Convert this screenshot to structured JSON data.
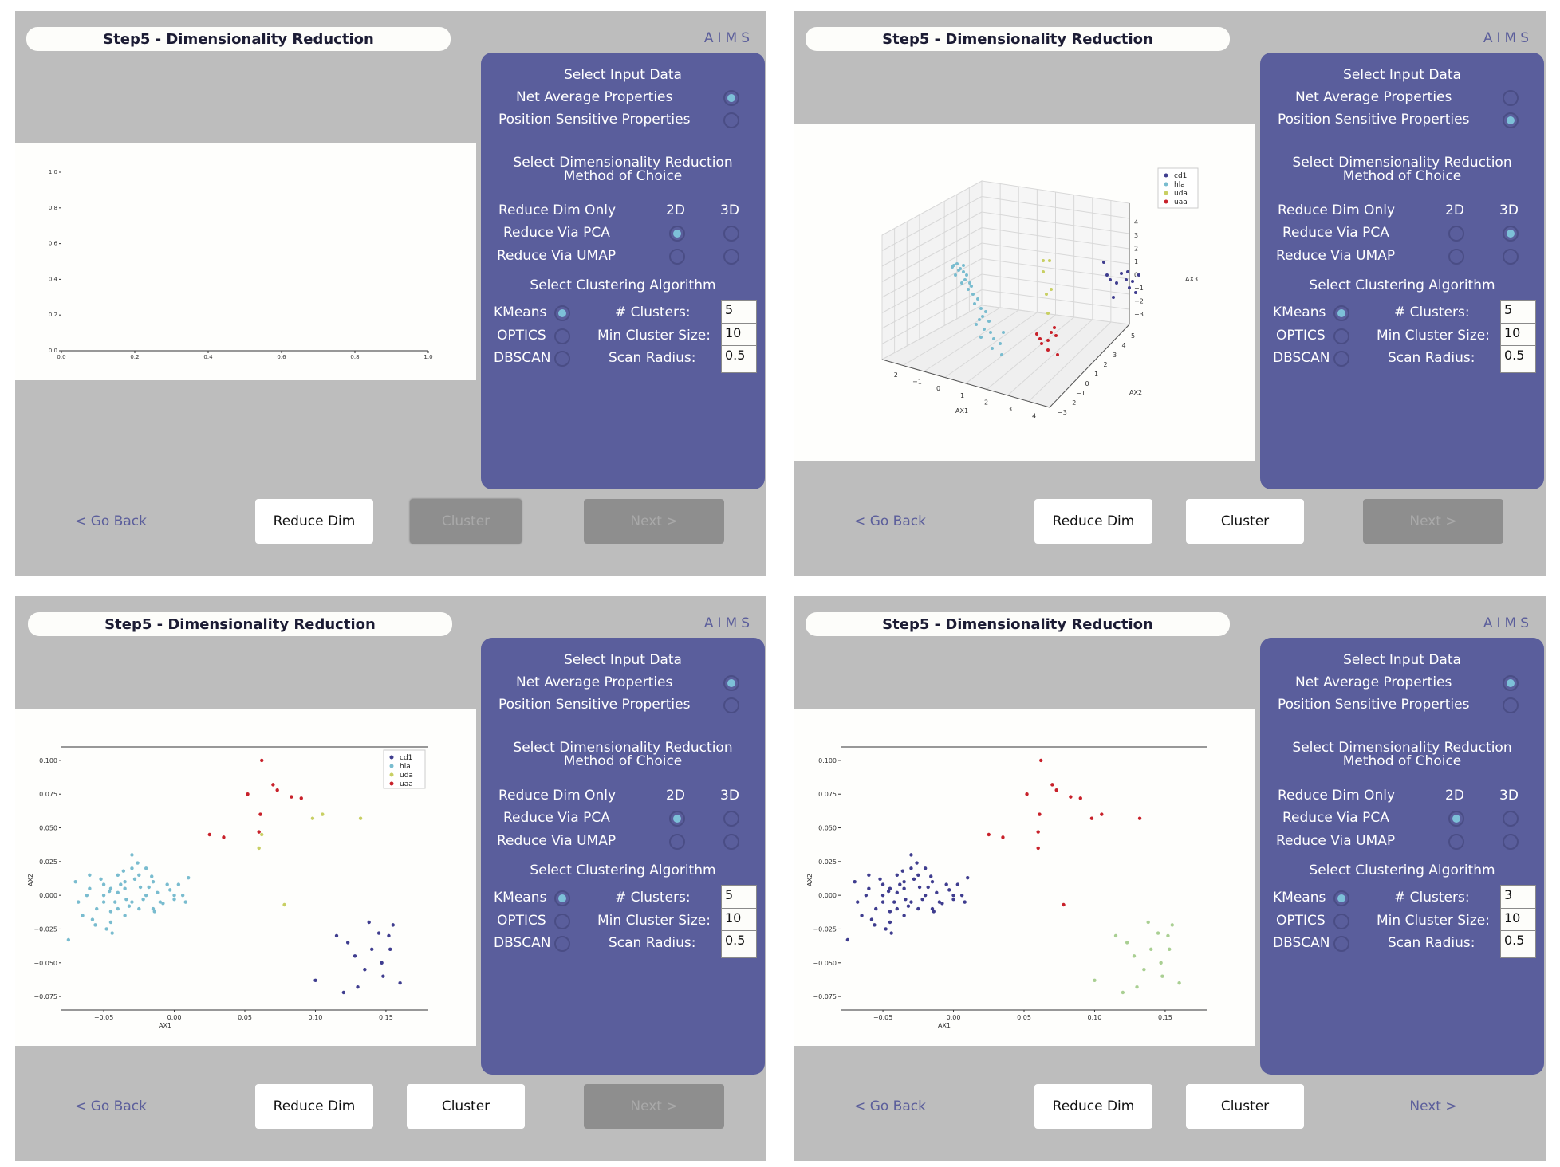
{
  "app": {
    "title": "Step5 - Dimensionality Reduction",
    "brand": "AIMS",
    "colors": {
      "background": "#bdbdbd",
      "sidebar": "#5a5e9c",
      "accent": "#7dc0d8",
      "link": "#5b5e9b"
    }
  },
  "labels": {
    "select_input": "Select Input Data",
    "net_average": "Net Average Properties",
    "position_sensitive": "Position Sensitive Properties",
    "select_dimred_1": "Select Dimensionality Reduction",
    "select_dimred_2": "Method of Choice",
    "reduce_dim_only": "Reduce Dim Only",
    "col_2d": "2D",
    "col_3d": "3D",
    "reduce_pca": "Reduce Via PCA",
    "reduce_umap": "Reduce Via UMAP",
    "select_clustering": "Select Clustering Algorithm",
    "kmeans": "KMeans",
    "optics": "OPTICS",
    "dbscan": "DBSCAN",
    "num_clusters": "# Clusters:",
    "min_cluster_size": "Min Cluster Size:",
    "scan_radius": "Scan Radius:",
    "go_back": "< Go Back",
    "reduce_dim_btn": "Reduce Dim",
    "cluster_btn": "Cluster",
    "next_btn": "Next >"
  },
  "panels": [
    {
      "input": "net_average",
      "method": "pca_2d",
      "algorithm": "kmeans",
      "num_clusters": "5",
      "min_cluster_size": "10",
      "scan_radius": "0.5",
      "cluster_enabled": false,
      "next_enabled": false,
      "plot_kind": "empty",
      "plot_top": 166,
      "plot_height": 297
    },
    {
      "input": "position_sensitive",
      "method": "pca_3d",
      "algorithm": "kmeans",
      "num_clusters": "5",
      "min_cluster_size": "10",
      "scan_radius": "0.5",
      "cluster_enabled": true,
      "next_enabled": false,
      "plot_kind": "3d",
      "plot_top": 141,
      "plot_height": 423
    },
    {
      "input": "net_average",
      "method": "pca_2d",
      "algorithm": "kmeans",
      "num_clusters": "5",
      "min_cluster_size": "10",
      "scan_radius": "0.5",
      "cluster_enabled": true,
      "next_enabled": false,
      "plot_kind": "scatter_colored",
      "plot_top": 141,
      "plot_height": 423
    },
    {
      "input": "net_average",
      "method": "pca_2d",
      "algorithm": "kmeans",
      "num_clusters": "3",
      "min_cluster_size": "10",
      "scan_radius": "0.5",
      "cluster_enabled": true,
      "next_enabled": true,
      "plot_kind": "scatter_clustered",
      "plot_top": 141,
      "plot_height": 423
    }
  ],
  "chart_data": [
    {
      "type": "scatter",
      "xlim": [
        0.0,
        1.0
      ],
      "ylim": [
        0.0,
        1.0
      ],
      "xticks": [
        "0.0",
        "0.2",
        "0.4",
        "0.6",
        "0.8",
        "1.0"
      ],
      "yticks": [
        "0.0",
        "0.2",
        "0.4",
        "0.6",
        "0.8",
        "1.0"
      ],
      "series": []
    },
    {
      "type": "scatter",
      "xlabel": "AX1",
      "ylabel": "AX2",
      "zlabel": "AX3",
      "xticks": [
        "−2",
        "−1",
        "0",
        "1",
        "2",
        "3",
        "4"
      ],
      "yticks": [
        "−3",
        "−2",
        "−1",
        "0",
        "1",
        "2",
        "3",
        "4",
        "5"
      ],
      "zticks": [
        "−3",
        "−2",
        "−1",
        "0",
        "1",
        "2",
        "3",
        "4"
      ],
      "legend": [
        "cd1",
        "hla",
        "uda",
        "uaa"
      ],
      "legend_colors": [
        "#3f3d8f",
        "#79bccf",
        "#c8cf63",
        "#c8212a"
      ]
    },
    {
      "type": "scatter",
      "xlabel": "AX1",
      "ylabel": "AX2",
      "xlim": [
        -0.08,
        0.18
      ],
      "ylim": [
        -0.085,
        0.11
      ],
      "xticks": [
        "−0.05",
        "0.00",
        "0.05",
        "0.10",
        "0.15"
      ],
      "yticks": [
        "−0.075",
        "−0.050",
        "−0.025",
        "0.000",
        "0.025",
        "0.050",
        "0.075",
        "0.100"
      ],
      "legend": "top-right",
      "series": [
        {
          "name": "cd1",
          "color": "#3f3d8f",
          "points": [
            [
              0.115,
              -0.03
            ],
            [
              0.123,
              -0.035
            ],
            [
              0.128,
              -0.045
            ],
            [
              0.138,
              -0.02
            ],
            [
              0.147,
              -0.05
            ],
            [
              0.152,
              -0.03
            ],
            [
              0.155,
              -0.022
            ],
            [
              0.14,
              -0.04
            ],
            [
              0.135,
              -0.055
            ],
            [
              0.145,
              -0.028
            ],
            [
              0.148,
              -0.06
            ],
            [
              0.16,
              -0.065
            ],
            [
              0.13,
              -0.068
            ],
            [
              0.12,
              -0.072
            ],
            [
              0.1,
              -0.063
            ],
            [
              0.153,
              -0.04
            ]
          ]
        },
        {
          "name": "hla",
          "color": "#79bccf",
          "points": [
            [
              -0.05,
              0.0
            ],
            [
              -0.045,
              0.005
            ],
            [
              -0.04,
              -0.01
            ],
            [
              -0.035,
              0.01
            ],
            [
              -0.03,
              0.02
            ],
            [
              -0.03,
              -0.005
            ],
            [
              -0.025,
              0.015
            ],
            [
              -0.02,
              0.0
            ],
            [
              -0.015,
              0.01
            ],
            [
              -0.01,
              -0.005
            ],
            [
              -0.055,
              -0.01
            ],
            [
              -0.06,
              0.005
            ],
            [
              -0.065,
              -0.015
            ],
            [
              -0.045,
              -0.02
            ],
            [
              -0.04,
              0.015
            ],
            [
              -0.035,
              -0.015
            ],
            [
              -0.03,
              0.03
            ],
            [
              -0.025,
              -0.01
            ],
            [
              -0.02,
              0.02
            ],
            [
              -0.015,
              -0.01
            ],
            [
              -0.05,
              0.008
            ],
            [
              -0.045,
              -0.012
            ],
            [
              -0.04,
              0.002
            ],
            [
              -0.035,
              0.005
            ],
            [
              -0.07,
              0.01
            ],
            [
              -0.068,
              -0.005
            ],
            [
              -0.062,
              0.0
            ],
            [
              -0.058,
              -0.018
            ],
            [
              -0.052,
              0.012
            ],
            [
              -0.048,
              -0.025
            ],
            [
              -0.042,
              -0.005
            ],
            [
              -0.038,
              0.008
            ],
            [
              -0.032,
              -0.008
            ],
            [
              -0.028,
              0.012
            ],
            [
              -0.022,
              -0.003
            ],
            [
              -0.018,
              0.006
            ],
            [
              -0.012,
              0.002
            ],
            [
              -0.005,
              0.008
            ],
            [
              0.0,
              0.0
            ],
            [
              0.003,
              0.008
            ],
            [
              0.008,
              -0.005
            ],
            [
              0.01,
              0.013
            ],
            [
              -0.075,
              -0.033
            ],
            [
              -0.056,
              -0.022
            ],
            [
              -0.044,
              -0.028
            ],
            [
              -0.036,
              0.018
            ],
            [
              -0.026,
              0.024
            ],
            [
              -0.016,
              0.014
            ],
            [
              -0.008,
              -0.006
            ],
            [
              -0.003,
              0.004
            ],
            [
              -0.06,
              0.015
            ],
            [
              -0.05,
              -0.005
            ],
            [
              -0.046,
              0.003
            ],
            [
              -0.034,
              -0.003
            ],
            [
              -0.024,
              0.006
            ],
            [
              -0.014,
              -0.012
            ],
            [
              0.0,
              -0.003
            ],
            [
              0.006,
              0.0
            ]
          ]
        },
        {
          "name": "uda",
          "color": "#c8cf63",
          "points": [
            [
              0.06,
              0.035
            ],
            [
              0.062,
              0.045
            ],
            [
              0.098,
              0.057
            ],
            [
              0.105,
              0.06
            ],
            [
              0.132,
              0.057
            ],
            [
              0.078,
              -0.007
            ]
          ]
        },
        {
          "name": "uaa",
          "color": "#c8212a",
          "points": [
            [
              0.025,
              0.045
            ],
            [
              0.035,
              0.043
            ],
            [
              0.052,
              0.075
            ],
            [
              0.062,
              0.1
            ],
            [
              0.07,
              0.082
            ],
            [
              0.073,
              0.078
            ],
            [
              0.083,
              0.073
            ],
            [
              0.09,
              0.072
            ],
            [
              0.061,
              0.06
            ],
            [
              0.06,
              0.047
            ]
          ]
        }
      ]
    },
    {
      "type": "scatter",
      "xlabel": "AX1",
      "ylabel": "AX2",
      "xlim": [
        -0.08,
        0.18
      ],
      "ylim": [
        -0.085,
        0.11
      ],
      "xticks": [
        "−0.05",
        "0.00",
        "0.05",
        "0.10",
        "0.15"
      ],
      "yticks": [
        "−0.075",
        "−0.050",
        "−0.025",
        "0.000",
        "0.025",
        "0.050",
        "0.075",
        "0.100"
      ],
      "series": [
        {
          "color": "#3f3d8f",
          "points": [
            [
              -0.05,
              0.0
            ],
            [
              -0.045,
              0.005
            ],
            [
              -0.04,
              -0.01
            ],
            [
              -0.035,
              0.01
            ],
            [
              -0.03,
              0.02
            ],
            [
              -0.03,
              -0.005
            ],
            [
              -0.025,
              0.015
            ],
            [
              -0.02,
              0.0
            ],
            [
              -0.015,
              0.01
            ],
            [
              -0.01,
              -0.005
            ],
            [
              -0.055,
              -0.01
            ],
            [
              -0.06,
              0.005
            ],
            [
              -0.065,
              -0.015
            ],
            [
              -0.045,
              -0.02
            ],
            [
              -0.04,
              0.015
            ],
            [
              -0.035,
              -0.015
            ],
            [
              -0.03,
              0.03
            ],
            [
              -0.025,
              -0.01
            ],
            [
              -0.02,
              0.02
            ],
            [
              -0.015,
              -0.01
            ],
            [
              -0.05,
              0.008
            ],
            [
              -0.045,
              -0.012
            ],
            [
              -0.04,
              0.002
            ],
            [
              -0.035,
              0.005
            ],
            [
              -0.07,
              0.01
            ],
            [
              -0.068,
              -0.005
            ],
            [
              -0.062,
              0.0
            ],
            [
              -0.058,
              -0.018
            ],
            [
              -0.052,
              0.012
            ],
            [
              -0.048,
              -0.025
            ],
            [
              -0.042,
              -0.005
            ],
            [
              -0.038,
              0.008
            ],
            [
              -0.032,
              -0.008
            ],
            [
              -0.028,
              0.012
            ],
            [
              -0.022,
              -0.003
            ],
            [
              -0.018,
              0.006
            ],
            [
              -0.012,
              0.002
            ],
            [
              -0.005,
              0.008
            ],
            [
              0.0,
              0.0
            ],
            [
              0.003,
              0.008
            ],
            [
              0.008,
              -0.005
            ],
            [
              0.01,
              0.013
            ],
            [
              -0.075,
              -0.033
            ],
            [
              -0.056,
              -0.022
            ],
            [
              -0.044,
              -0.028
            ],
            [
              -0.036,
              0.018
            ],
            [
              -0.026,
              0.024
            ],
            [
              -0.016,
              0.014
            ],
            [
              -0.008,
              -0.006
            ],
            [
              -0.003,
              0.004
            ],
            [
              -0.06,
              0.015
            ],
            [
              -0.05,
              -0.005
            ],
            [
              -0.046,
              0.003
            ],
            [
              -0.034,
              -0.003
            ],
            [
              -0.024,
              0.006
            ],
            [
              -0.014,
              -0.012
            ],
            [
              0.0,
              -0.003
            ],
            [
              0.006,
              0.0
            ]
          ]
        },
        {
          "color": "#c8212a",
          "points": [
            [
              0.025,
              0.045
            ],
            [
              0.035,
              0.043
            ],
            [
              0.052,
              0.075
            ],
            [
              0.062,
              0.1
            ],
            [
              0.07,
              0.082
            ],
            [
              0.073,
              0.078
            ],
            [
              0.083,
              0.073
            ],
            [
              0.09,
              0.072
            ],
            [
              0.061,
              0.06
            ],
            [
              0.06,
              0.047
            ],
            [
              0.098,
              0.057
            ],
            [
              0.105,
              0.06
            ],
            [
              0.132,
              0.057
            ],
            [
              0.078,
              -0.007
            ],
            [
              0.06,
              0.035
            ]
          ]
        },
        {
          "color": "#a9cf92",
          "points": [
            [
              0.115,
              -0.03
            ],
            [
              0.123,
              -0.035
            ],
            [
              0.128,
              -0.045
            ],
            [
              0.138,
              -0.02
            ],
            [
              0.147,
              -0.05
            ],
            [
              0.152,
              -0.03
            ],
            [
              0.155,
              -0.022
            ],
            [
              0.14,
              -0.04
            ],
            [
              0.135,
              -0.055
            ],
            [
              0.145,
              -0.028
            ],
            [
              0.148,
              -0.06
            ],
            [
              0.16,
              -0.065
            ],
            [
              0.13,
              -0.068
            ],
            [
              0.12,
              -0.072
            ],
            [
              0.1,
              -0.063
            ],
            [
              0.153,
              -0.04
            ]
          ]
        }
      ]
    }
  ]
}
